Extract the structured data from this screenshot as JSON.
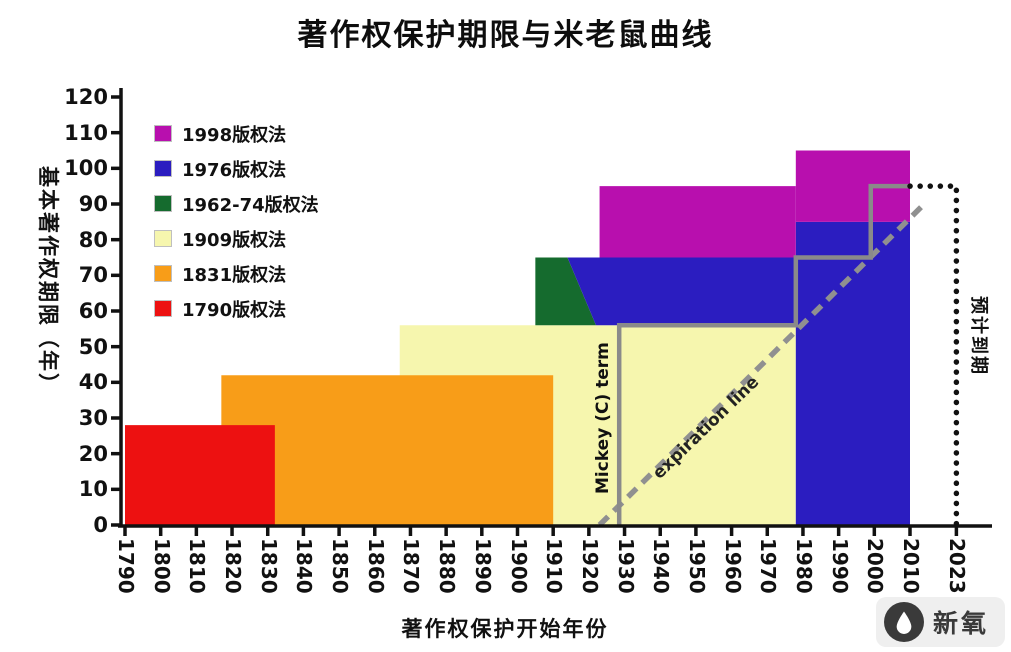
{
  "title": "著作权保护期限与米老鼠曲线",
  "watermark": {
    "brand": "新氧",
    "icon": "water-drop-icon"
  },
  "chart_data": {
    "type": "area",
    "title": "著作权保护期限与米老鼠曲线",
    "xlabel": "著作权保护开始年份",
    "ylabel": "基本著作权期限（年）",
    "xlim": [
      1790,
      2023
    ],
    "ylim": [
      0,
      120
    ],
    "grid": false,
    "x_ticks": [
      1790,
      1800,
      1810,
      1820,
      1830,
      1840,
      1850,
      1860,
      1870,
      1880,
      1890,
      1900,
      1910,
      1920,
      1930,
      1940,
      1950,
      1960,
      1970,
      1980,
      1990,
      2000,
      2010,
      2023
    ],
    "y_ticks": [
      0,
      10,
      20,
      30,
      40,
      50,
      60,
      70,
      80,
      90,
      100,
      110,
      120
    ],
    "legend": {
      "position": "top-left",
      "items": [
        {
          "label": "1998版权法",
          "color": "#b80fae"
        },
        {
          "label": "1976版权法",
          "color": "#2b1dc0"
        },
        {
          "label": "1962-74版权法",
          "color": "#156b2e"
        },
        {
          "label": "1909版权法",
          "color": "#f6f6ae"
        },
        {
          "label": "1831版权法",
          "color": "#f89d18"
        },
        {
          "label": "1790版权法",
          "color": "#ed1111"
        }
      ]
    },
    "regions": [
      {
        "key": "1909",
        "act": "1909版权法",
        "term_years": 56,
        "color": "#f6f6ae",
        "points": [
          [
            1867,
            0
          ],
          [
            1867,
            56
          ],
          [
            1978,
            56
          ],
          [
            1978,
            0
          ]
        ]
      },
      {
        "key": "1831",
        "act": "1831版权法",
        "term_years": 42,
        "color": "#f89d18",
        "points": [
          [
            1817,
            0
          ],
          [
            1817,
            42
          ],
          [
            1910,
            42
          ],
          [
            1910,
            0
          ]
        ]
      },
      {
        "key": "1790",
        "act": "1790版权法",
        "term_years": 28,
        "color": "#ed1111",
        "points": [
          [
            1790,
            0
          ],
          [
            1790,
            28
          ],
          [
            1832,
            28
          ],
          [
            1832,
            0
          ]
        ]
      },
      {
        "key": "1962-74",
        "act": "1962-74版权法",
        "term_years": 75,
        "color": "#156b2e",
        "points": [
          [
            1905,
            56
          ],
          [
            1905,
            75
          ],
          [
            1914,
            75
          ],
          [
            1922,
            56
          ]
        ]
      },
      {
        "key": "1976-pre1978",
        "act": "1976版权法",
        "term_years": 75,
        "color": "#2b1dc0",
        "points": [
          [
            1914,
            75
          ],
          [
            1978,
            75
          ],
          [
            1978,
            56
          ],
          [
            1922,
            56
          ]
        ]
      },
      {
        "key": "1976-post1978",
        "act": "1976版权法",
        "term_years": 85,
        "color": "#2b1dc0",
        "points": [
          [
            1978,
            0
          ],
          [
            1978,
            85
          ],
          [
            2010,
            85
          ],
          [
            2010,
            0
          ]
        ]
      },
      {
        "key": "1998-pre1978",
        "act": "1998版权法",
        "term_years": 95,
        "color": "#b80fae",
        "points": [
          [
            1923,
            75
          ],
          [
            1923,
            95
          ],
          [
            1978,
            95
          ],
          [
            1978,
            75
          ]
        ]
      },
      {
        "key": "1998-post1978",
        "act": "1998版权法",
        "term_years": 105,
        "color": "#b80fae",
        "points": [
          [
            1978,
            85
          ],
          [
            1978,
            105
          ],
          [
            2010,
            105
          ],
          [
            2010,
            85
          ]
        ]
      }
    ],
    "mickey_line": {
      "label": "Mickey (C) term",
      "color": "#8a8a8a",
      "style": "solid",
      "points": [
        [
          1928.5,
          0
        ],
        [
          1928.5,
          56
        ],
        [
          1978,
          56
        ],
        [
          1978,
          75
        ],
        [
          1999,
          75
        ],
        [
          1999,
          95
        ],
        [
          2010,
          95
        ]
      ]
    },
    "expiration_line": {
      "label": "expiration line",
      "color": "#909090",
      "style": "dashed",
      "points": [
        [
          1923,
          0
        ],
        [
          2014,
          90
        ]
      ]
    },
    "projection_line": {
      "label": "预计到期",
      "color": "#111111",
      "style": "dotted",
      "points": [
        [
          2010,
          95
        ],
        [
          2023,
          95
        ],
        [
          2023,
          0
        ]
      ]
    }
  }
}
